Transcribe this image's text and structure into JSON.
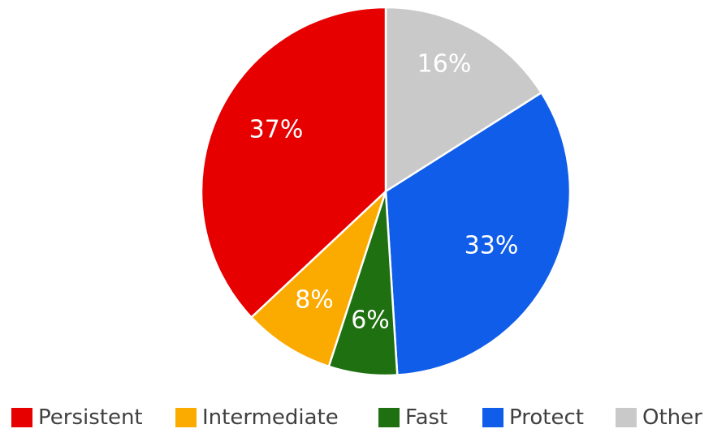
{
  "chart_data": {
    "type": "pie",
    "slices": [
      {
        "name": "Other",
        "value": 16,
        "label": "16%",
        "color": "#c9c9c9"
      },
      {
        "name": "Protect",
        "value": 33,
        "label": "33%",
        "color": "#0f5de8"
      },
      {
        "name": "Fast",
        "value": 6,
        "label": "6%",
        "color": "#1f7011"
      },
      {
        "name": "Intermediate",
        "value": 8,
        "label": "8%",
        "color": "#fbaa00"
      },
      {
        "name": "Persistent",
        "value": 37,
        "label": "37%",
        "color": "#e60000"
      }
    ],
    "legend": [
      "Persistent",
      "Intermediate",
      "Fast",
      "Protect",
      "Other"
    ],
    "legend_position": "bottom",
    "start_direction": "top",
    "direction": "clockwise"
  }
}
